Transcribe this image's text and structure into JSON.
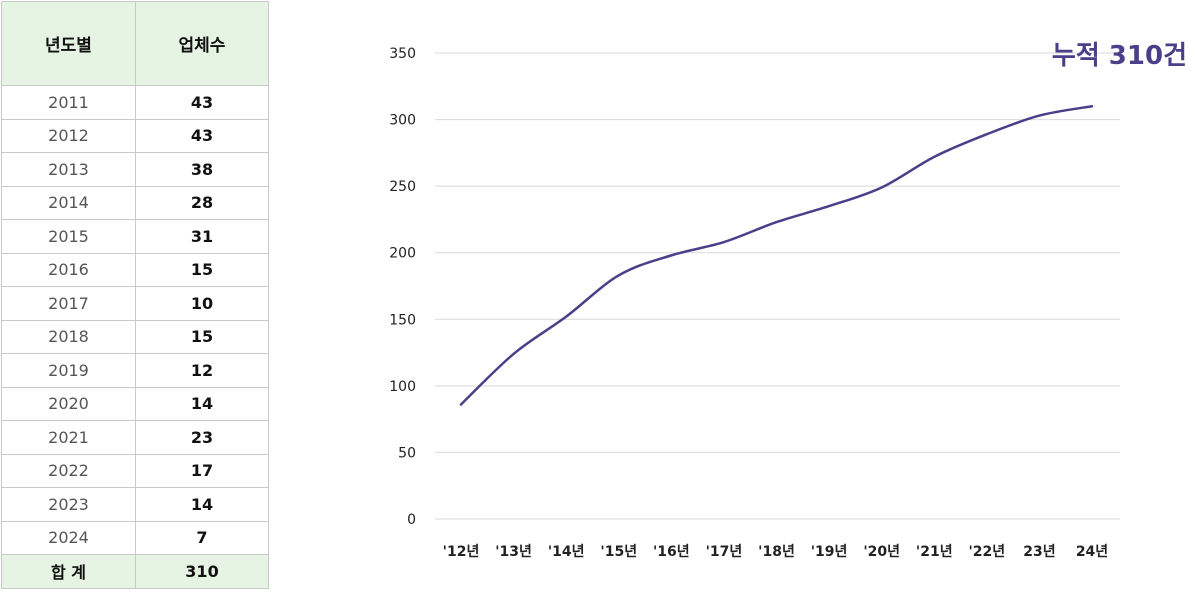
{
  "table": {
    "headers": [
      "년도별",
      "업체수"
    ],
    "rows": [
      {
        "year": "2011",
        "count": "43"
      },
      {
        "year": "2012",
        "count": "43"
      },
      {
        "year": "2013",
        "count": "38"
      },
      {
        "year": "2014",
        "count": "28"
      },
      {
        "year": "2015",
        "count": "31"
      },
      {
        "year": "2016",
        "count": "15"
      },
      {
        "year": "2017",
        "count": "10"
      },
      {
        "year": "2018",
        "count": "15"
      },
      {
        "year": "2019",
        "count": "12"
      },
      {
        "year": "2020",
        "count": "14"
      },
      {
        "year": "2021",
        "count": "23"
      },
      {
        "year": "2022",
        "count": "17"
      },
      {
        "year": "2023",
        "count": "14"
      },
      {
        "year": "2024",
        "count": "7"
      }
    ],
    "total_label": "합 계",
    "total_value": "310"
  },
  "chart_data": {
    "type": "line",
    "title": "",
    "xlabel": "",
    "ylabel": "",
    "categories": [
      "'12년",
      "'13년",
      "'14년",
      "'15년",
      "'16년",
      "'17년",
      "'18년",
      "'19년",
      "'20년",
      "'21년",
      "'22년",
      "23년",
      "24년"
    ],
    "series": [
      {
        "values": [
          86,
          124,
          152,
          183,
          198,
          208,
          223,
          235,
          249,
          272,
          289,
          303,
          310
        ]
      }
    ],
    "ylim": [
      0,
      350
    ],
    "yticks": [
      0,
      50,
      100,
      150,
      200,
      250,
      300,
      350
    ],
    "grid": true,
    "annotation": "누적 310건",
    "colors": {
      "line": "#4b3f8a",
      "header_bg": "#e6f4e3"
    }
  }
}
